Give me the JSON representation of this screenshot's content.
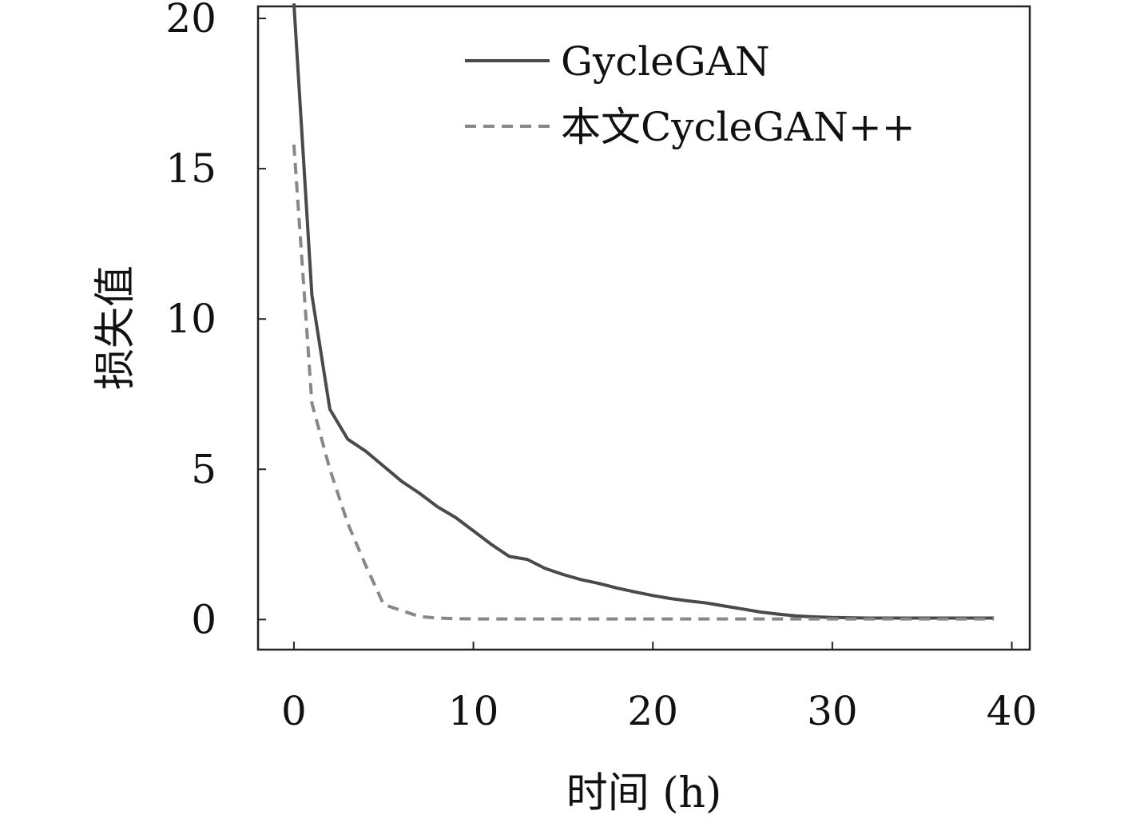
{
  "chart_data": {
    "type": "line",
    "title": "",
    "xlabel": "时间 (h)",
    "ylabel": "损失值",
    "xlim": [
      -2,
      41
    ],
    "ylim": [
      -1,
      20.4
    ],
    "xticks": [
      0,
      10,
      20,
      30,
      40
    ],
    "yticks": [
      0,
      5,
      10,
      15,
      20
    ],
    "grid": false,
    "legend_position": "top-right",
    "series": [
      {
        "name": "GycleGAN",
        "color": "#4a4a4a",
        "style": "solid",
        "x": [
          0,
          1,
          2,
          3,
          4,
          5,
          6,
          7,
          8,
          9,
          10,
          11,
          12,
          13,
          14,
          15,
          16,
          17,
          18,
          19,
          20,
          21,
          22,
          23,
          24,
          25,
          26,
          27,
          28,
          29,
          30,
          31,
          32,
          33,
          34,
          35,
          36,
          37,
          38,
          39
        ],
        "y": [
          20.5,
          10.8,
          7.0,
          6.0,
          5.6,
          5.1,
          4.6,
          4.2,
          3.75,
          3.4,
          2.95,
          2.5,
          2.1,
          2.0,
          1.7,
          1.5,
          1.33,
          1.2,
          1.05,
          0.92,
          0.8,
          0.7,
          0.62,
          0.55,
          0.45,
          0.35,
          0.25,
          0.18,
          0.12,
          0.09,
          0.07,
          0.06,
          0.05,
          0.05,
          0.05,
          0.05,
          0.05,
          0.05,
          0.05,
          0.05
        ]
      },
      {
        "name": "本文CycleGAN++",
        "color": "#888888",
        "style": "dashed",
        "x": [
          0,
          1,
          2,
          3,
          4,
          5,
          6,
          7,
          8,
          9,
          10,
          12,
          15,
          20,
          25,
          30,
          35,
          39
        ],
        "y": [
          15.8,
          7.2,
          5.0,
          3.2,
          1.8,
          0.5,
          0.3,
          0.1,
          0.05,
          0.03,
          0.02,
          0.02,
          0.02,
          0.02,
          0.02,
          0.02,
          0.02,
          0.02
        ]
      }
    ]
  }
}
